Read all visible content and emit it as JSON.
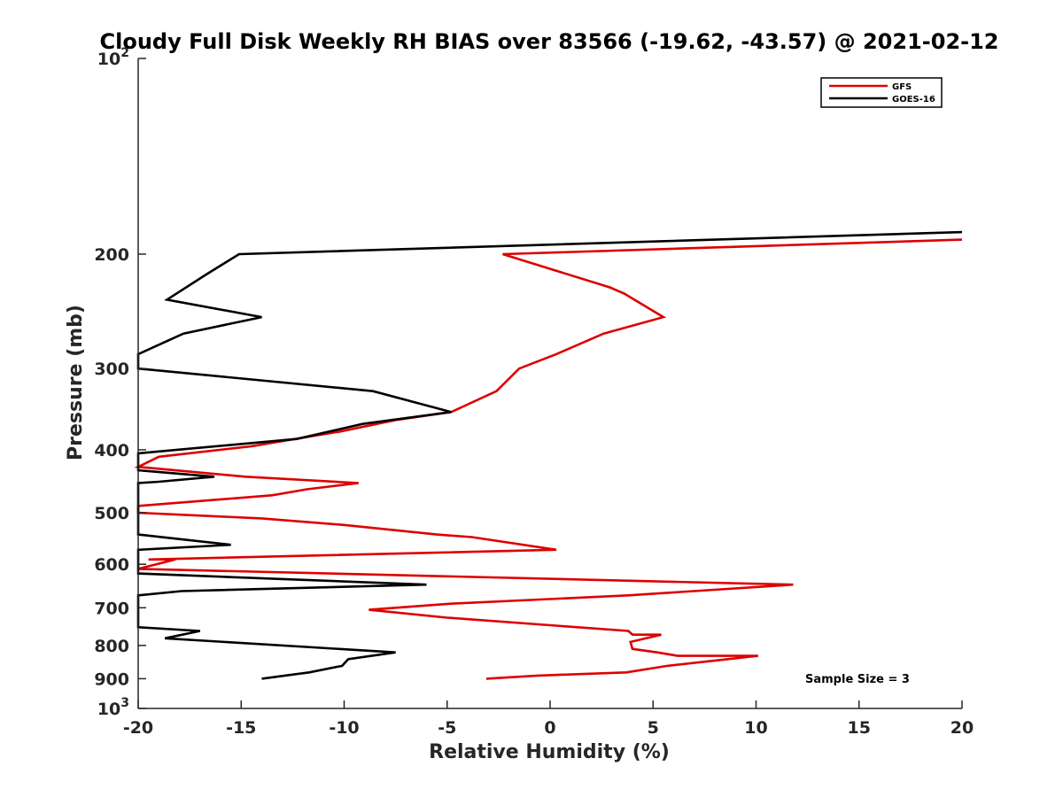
{
  "chart_data": {
    "type": "line",
    "title": "Cloudy Full Disk Weekly RH BIAS over 83566 (-19.62, -43.57) @ 2021-02-12",
    "xlabel": "Relative Humidity (%)",
    "ylabel": "Pressure (mb)",
    "xlim": [
      -20,
      20
    ],
    "ylim": [
      100,
      1000
    ],
    "yscale": "log",
    "y_reversed": true,
    "grid": false,
    "legend_position": "top-right",
    "x_ticks": [
      -20,
      -15,
      -10,
      -5,
      0,
      5,
      10,
      15,
      20
    ],
    "x_tick_labels": [
      "-20",
      "-15",
      "-10",
      "-5",
      "0",
      "5",
      "10",
      "15",
      "20"
    ],
    "y_ticks": [
      100,
      200,
      300,
      400,
      500,
      600,
      700,
      800,
      900,
      1000
    ],
    "y_tick_labels": [
      "10^2",
      "200",
      "300",
      "400",
      "500",
      "600",
      "700",
      "800",
      "900",
      "10^3"
    ],
    "annotation": "Sample Size = 3",
    "series": [
      {
        "name": "GFS",
        "color": "#dd0000",
        "points": [
          [
            20,
            190
          ],
          [
            -2.3,
            200
          ],
          [
            2.9,
            225
          ],
          [
            3.6,
            230
          ],
          [
            5.5,
            250
          ],
          [
            2.6,
            265
          ],
          [
            0.3,
            285
          ],
          [
            -1.5,
            300
          ],
          [
            -2.6,
            325
          ],
          [
            -4.8,
            350
          ],
          [
            -7.5,
            360
          ],
          [
            -10.2,
            375
          ],
          [
            -14.5,
            395
          ],
          [
            -19,
            410
          ],
          [
            -20,
            425
          ],
          [
            -14.8,
            440
          ],
          [
            -9.3,
            450
          ],
          [
            -11.8,
            460
          ],
          [
            -13.5,
            470
          ],
          [
            -20,
            488
          ],
          [
            -20,
            500
          ],
          [
            -14,
            510
          ],
          [
            -10,
            522
          ],
          [
            -5.5,
            540
          ],
          [
            -3.8,
            545
          ],
          [
            0.3,
            570
          ],
          [
            -19.5,
            590
          ],
          [
            -18.2,
            590
          ],
          [
            -20,
            610
          ],
          [
            11.8,
            645
          ],
          [
            3.8,
            670
          ],
          [
            -4.8,
            690
          ],
          [
            -8.8,
            705
          ],
          [
            -5,
            725
          ],
          [
            3.8,
            760
          ],
          [
            4,
            770
          ],
          [
            5.4,
            770
          ],
          [
            3.9,
            790
          ],
          [
            4,
            810
          ],
          [
            5.2,
            820
          ],
          [
            6.2,
            830
          ],
          [
            10.1,
            830
          ],
          [
            5.7,
            860
          ],
          [
            3.7,
            880
          ],
          [
            -0.6,
            890
          ],
          [
            -3.1,
            900
          ]
        ]
      },
      {
        "name": "GOES-16",
        "color": "#000000",
        "points": [
          [
            20,
            185
          ],
          [
            -15.1,
            200
          ],
          [
            -16.7,
            215
          ],
          [
            -18.6,
            235
          ],
          [
            -14,
            250
          ],
          [
            -17.8,
            265
          ],
          [
            -20,
            285
          ],
          [
            -20,
            300
          ],
          [
            -8.6,
            325
          ],
          [
            -4.8,
            350
          ],
          [
            -9.1,
            365
          ],
          [
            -12.3,
            385
          ],
          [
            -20,
            405
          ],
          [
            -20,
            420
          ],
          [
            -20,
            430
          ],
          [
            -16.3,
            440
          ],
          [
            -19,
            448
          ],
          [
            -20,
            450
          ],
          [
            -20,
            540
          ],
          [
            -15.5,
            560
          ],
          [
            -20,
            570
          ],
          [
            -20,
            620
          ],
          [
            -6,
            645
          ],
          [
            -17.9,
            660
          ],
          [
            -20,
            670
          ],
          [
            -20,
            750
          ],
          [
            -17,
            760
          ],
          [
            -18.7,
            780
          ],
          [
            -7.5,
            820
          ],
          [
            -9.8,
            840
          ],
          [
            -10.1,
            860
          ],
          [
            -11.7,
            880
          ],
          [
            -14,
            900
          ]
        ]
      }
    ]
  }
}
